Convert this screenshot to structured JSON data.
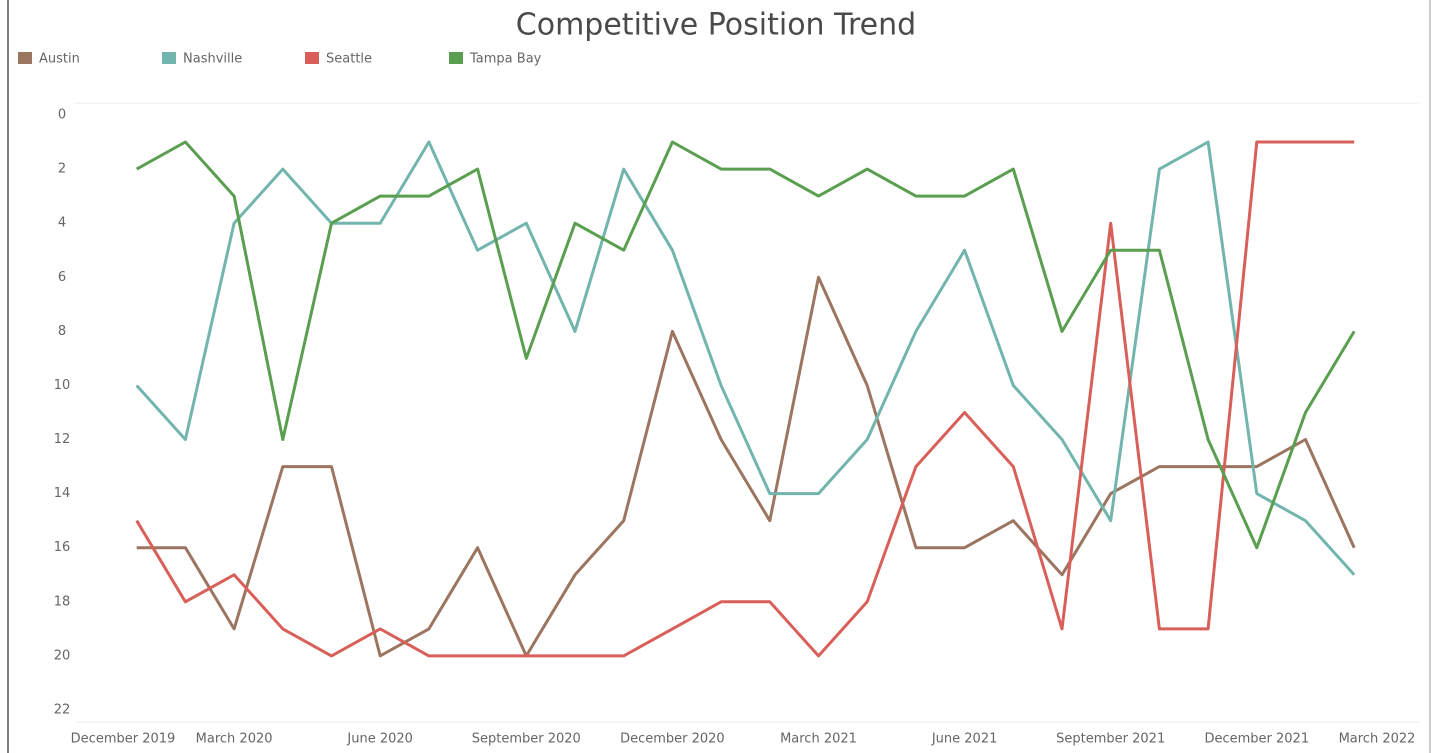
{
  "chart_data": {
    "type": "line",
    "title": "Competitive Position Trend",
    "categories": [
      "December 2019",
      null,
      null,
      "March 2020",
      null,
      null,
      "June 2020",
      null,
      null,
      "September 2020",
      null,
      null,
      "December 2020",
      null,
      null,
      "March 2021",
      null,
      null,
      "June 2021",
      null,
      null,
      "September 2021",
      null,
      null,
      "December 2021",
      null,
      null,
      "March 2022"
    ],
    "series": [
      {
        "name": "Austin",
        "color": "#9c7561",
        "values": [
          null,
          16,
          16,
          19,
          13,
          13,
          20,
          19,
          16,
          20,
          17,
          15,
          8,
          12,
          15,
          6,
          10,
          16,
          16,
          15,
          17,
          14,
          13,
          13,
          13,
          12,
          16,
          null
        ]
      },
      {
        "name": "Nashville",
        "color": "#72b5ac",
        "values": [
          null,
          10,
          12,
          4,
          2,
          4,
          4,
          1,
          5,
          4,
          8,
          2,
          5,
          10,
          14,
          14,
          12,
          8,
          5,
          10,
          12,
          15,
          2,
          1,
          14,
          15,
          17,
          null
        ]
      },
      {
        "name": "Seattle",
        "color": "#d9605a",
        "values": [
          null,
          15,
          18,
          17,
          19,
          20,
          19,
          20,
          20,
          20,
          20,
          20,
          19,
          18,
          18,
          20,
          18,
          13,
          11,
          13,
          19,
          4,
          19,
          19,
          1,
          1,
          1,
          null
        ]
      },
      {
        "name": "Tampa Bay",
        "color": "#5a9e4f",
        "values": [
          null,
          2,
          1,
          3,
          12,
          4,
          3,
          3,
          2,
          9,
          4,
          5,
          1,
          2,
          2,
          3,
          2,
          3,
          3,
          2,
          8,
          5,
          5,
          12,
          16,
          11,
          8,
          null
        ]
      }
    ],
    "ylim": [
      0,
      22
    ],
    "yticks": [
      0,
      2,
      4,
      6,
      8,
      10,
      12,
      14,
      16,
      18,
      20,
      22
    ],
    "y_reversed": true,
    "legend": "top-left",
    "grid": false
  }
}
